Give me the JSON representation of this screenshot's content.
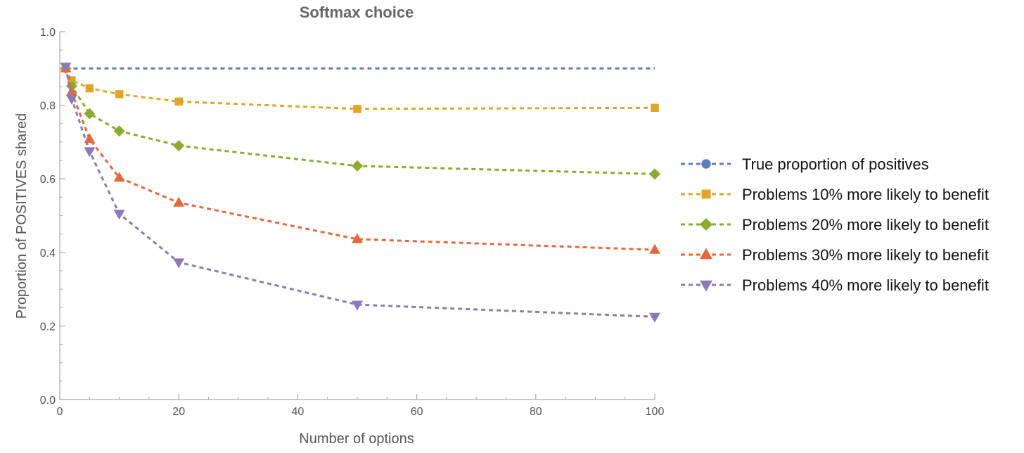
{
  "chart_data": {
    "type": "line",
    "title": "Softmax choice",
    "xlabel": "Number of options",
    "ylabel": "Proportion of POSITIVES shared",
    "xlim": [
      0,
      100
    ],
    "ylim": [
      0,
      1.0
    ],
    "xticks": [
      0,
      20,
      40,
      60,
      80,
      100
    ],
    "xtick_labels": [
      "0",
      "20",
      "40",
      "60",
      "80",
      "100"
    ],
    "yticks": [
      0.0,
      0.2,
      0.4,
      0.6,
      0.8,
      1.0
    ],
    "ytick_labels": [
      "0.0",
      "0.2",
      "0.4",
      "0.6",
      "0.8",
      "1.0"
    ],
    "grid": false,
    "legend_position": "right",
    "line_style": "dashed",
    "series": [
      {
        "name": "True proportion of positives",
        "color": "#5b7fbd",
        "marker": "circle",
        "x": [],
        "y": [],
        "line_x": [
          1,
          100
        ],
        "line_y": [
          0.9,
          0.9
        ]
      },
      {
        "name": "Problems 10% more likely to benefit",
        "color": "#e1a52a",
        "marker": "square",
        "x": [
          1,
          2,
          5,
          10,
          20,
          50,
          100
        ],
        "y": [
          0.9,
          0.868,
          0.846,
          0.83,
          0.81,
          0.79,
          0.793
        ]
      },
      {
        "name": "Problems 20% more likely to benefit",
        "color": "#8aab2e",
        "marker": "diamond",
        "x": [
          1,
          2,
          5,
          10,
          20,
          50,
          100
        ],
        "y": [
          0.9,
          0.852,
          0.777,
          0.73,
          0.69,
          0.635,
          0.613
        ]
      },
      {
        "name": "Problems 30% more likely to benefit",
        "color": "#e8673a",
        "marker": "triangle-up",
        "x": [
          1,
          2,
          5,
          10,
          20,
          50,
          100
        ],
        "y": [
          0.9,
          0.836,
          0.708,
          0.603,
          0.535,
          0.436,
          0.407
        ]
      },
      {
        "name": "Problems 40% more likely to benefit",
        "color": "#8b7ab8",
        "marker": "triangle-down",
        "x": [
          1,
          2,
          5,
          10,
          20,
          50,
          100
        ],
        "y": [
          0.905,
          0.818,
          0.675,
          0.505,
          0.373,
          0.258,
          0.225
        ]
      }
    ]
  }
}
